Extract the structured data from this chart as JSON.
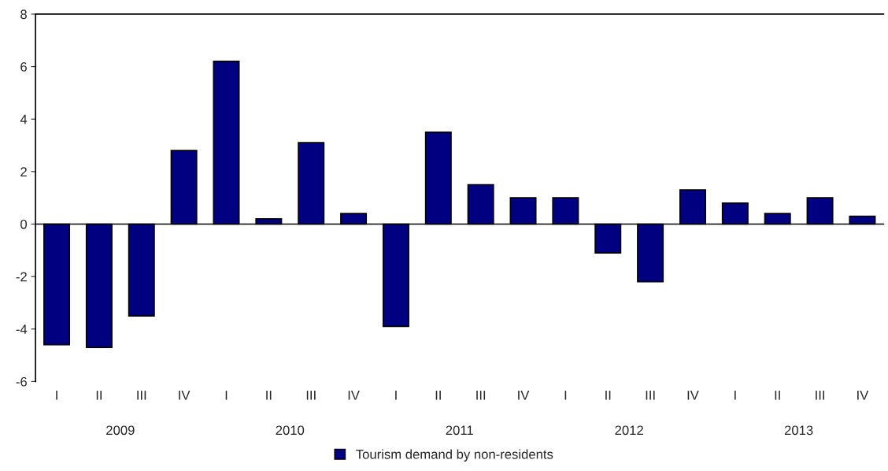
{
  "chart_data": {
    "type": "bar",
    "categories": [
      "I",
      "II",
      "III",
      "IV",
      "I",
      "II",
      "III",
      "IV",
      "I",
      "II",
      "III",
      "IV",
      "I",
      "II",
      "III",
      "IV",
      "I",
      "II",
      "III",
      "IV"
    ],
    "series": [
      {
        "name": "Tourism demand by non-residents",
        "color": "#000080",
        "values": [
          -4.6,
          -4.7,
          -3.5,
          2.8,
          6.2,
          0.2,
          3.1,
          0.4,
          -3.9,
          3.5,
          1.5,
          1.0,
          1.0,
          -1.1,
          -2.2,
          1.3,
          0.8,
          0.4,
          1.0,
          0.3
        ]
      }
    ],
    "annotations": [
      "2009",
      "2010",
      "2011",
      "2012",
      "2013"
    ],
    "ylim": [
      -6,
      8
    ],
    "yticks": [
      -6,
      -4,
      -2,
      0,
      2,
      4,
      6,
      8
    ],
    "legend": "bottom"
  }
}
